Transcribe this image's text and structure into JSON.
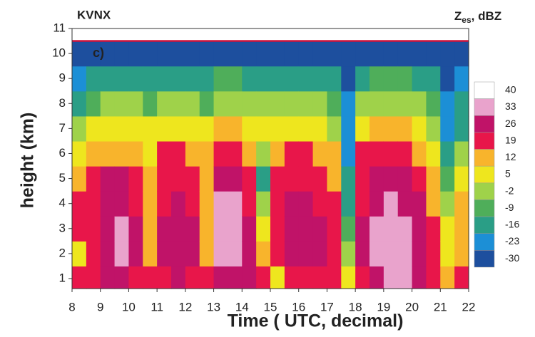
{
  "chart_data": {
    "type": "contour",
    "title": "KVNX",
    "panel_label": "c)",
    "xlabel": "Time ( UTC, decimal)",
    "ylabel": "height  (km)",
    "colorbar_label": {
      "main": "Z",
      "sub": "es",
      "suffix": ", dBZ"
    },
    "xlim": [
      8,
      22
    ],
    "xticks": [
      8,
      9,
      10,
      11,
      12,
      13,
      14,
      15,
      16,
      17,
      18,
      19,
      20,
      21,
      22
    ],
    "ylim": [
      0.6,
      11
    ],
    "yticks": [
      1,
      2,
      3,
      4,
      5,
      6,
      7,
      8,
      9,
      10,
      11
    ],
    "x": [
      8.25,
      8.75,
      9.25,
      9.75,
      10.25,
      10.75,
      11.25,
      11.75,
      12.25,
      12.75,
      13.25,
      13.75,
      14.25,
      14.75,
      15.25,
      15.75,
      16.25,
      16.75,
      17.25,
      17.75,
      18.25,
      18.75,
      19.25,
      19.75,
      20.25,
      20.75,
      21.25,
      21.75
    ],
    "y": [
      1,
      2,
      3,
      4,
      5,
      6,
      7,
      8,
      9,
      10
    ],
    "z": [
      [
        20,
        10,
        20,
        20,
        15,
        8,
        0,
        -10,
        -18,
        -30
      ],
      [
        22,
        22,
        22,
        22,
        22,
        15,
        8,
        -5,
        -15,
        -30
      ],
      [
        26,
        26,
        28,
        28,
        26,
        15,
        8,
        -2,
        -12,
        -30
      ],
      [
        28,
        35,
        35,
        30,
        26,
        18,
        8,
        -2,
        -12,
        -30
      ],
      [
        24,
        26,
        26,
        24,
        22,
        16,
        8,
        -2,
        -12,
        -30
      ],
      [
        20,
        12,
        12,
        12,
        12,
        10,
        6,
        -4,
        -14,
        -30
      ],
      [
        24,
        26,
        26,
        24,
        24,
        20,
        10,
        0,
        -10,
        -30
      ],
      [
        26,
        28,
        28,
        26,
        24,
        20,
        10,
        0,
        -10,
        -30
      ],
      [
        24,
        26,
        26,
        24,
        22,
        18,
        8,
        -2,
        -12,
        -30
      ],
      [
        20,
        15,
        15,
        15,
        14,
        12,
        6,
        -4,
        -14,
        -30
      ],
      [
        28,
        34,
        35,
        34,
        28,
        24,
        14,
        4,
        -8,
        -30
      ],
      [
        28,
        35,
        36,
        33,
        28,
        24,
        14,
        4,
        -8,
        -30
      ],
      [
        26,
        26,
        26,
        24,
        22,
        16,
        8,
        -2,
        -12,
        -30
      ],
      [
        20,
        12,
        8,
        4,
        -10,
        0,
        6,
        -2,
        -14,
        -30
      ],
      [
        10,
        20,
        22,
        22,
        22,
        18,
        8,
        -2,
        -12,
        -30
      ],
      [
        24,
        28,
        28,
        26,
        24,
        20,
        10,
        0,
        -10,
        -30
      ],
      [
        24,
        28,
        28,
        26,
        24,
        20,
        10,
        0,
        -10,
        -30
      ],
      [
        24,
        26,
        26,
        24,
        22,
        18,
        8,
        -2,
        -12,
        -30
      ],
      [
        22,
        22,
        22,
        20,
        18,
        12,
        4,
        -6,
        -14,
        -30
      ],
      [
        5,
        0,
        -5,
        -10,
        -14,
        -18,
        -20,
        -22,
        -25,
        -30
      ],
      [
        24,
        26,
        26,
        24,
        24,
        20,
        10,
        0,
        -10,
        -30
      ],
      [
        28,
        35,
        35,
        30,
        26,
        20,
        12,
        2,
        -8,
        -30
      ],
      [
        36,
        38,
        38,
        36,
        30,
        20,
        12,
        2,
        -8,
        -30
      ],
      [
        34,
        36,
        34,
        30,
        26,
        20,
        12,
        2,
        -8,
        -30
      ],
      [
        26,
        28,
        28,
        26,
        22,
        18,
        8,
        -2,
        -12,
        -30
      ],
      [
        22,
        22,
        22,
        18,
        14,
        8,
        0,
        -8,
        -16,
        -30
      ],
      [
        12,
        8,
        5,
        0,
        -8,
        -14,
        -18,
        -20,
        -24,
        -30
      ],
      [
        20,
        18,
        16,
        12,
        6,
        -2,
        -10,
        -16,
        -22,
        -30
      ]
    ],
    "levels": [
      -30,
      -23,
      -16,
      -9,
      -2,
      5,
      12,
      19,
      26,
      33,
      40
    ],
    "colors": [
      "#1d4f9e",
      "#1c8fd6",
      "#2a9e86",
      "#4fae5a",
      "#9fd24a",
      "#eee61e",
      "#f8b42c",
      "#e8164a",
      "#c01368",
      "#e9a3cc",
      "#ffffff"
    ]
  }
}
